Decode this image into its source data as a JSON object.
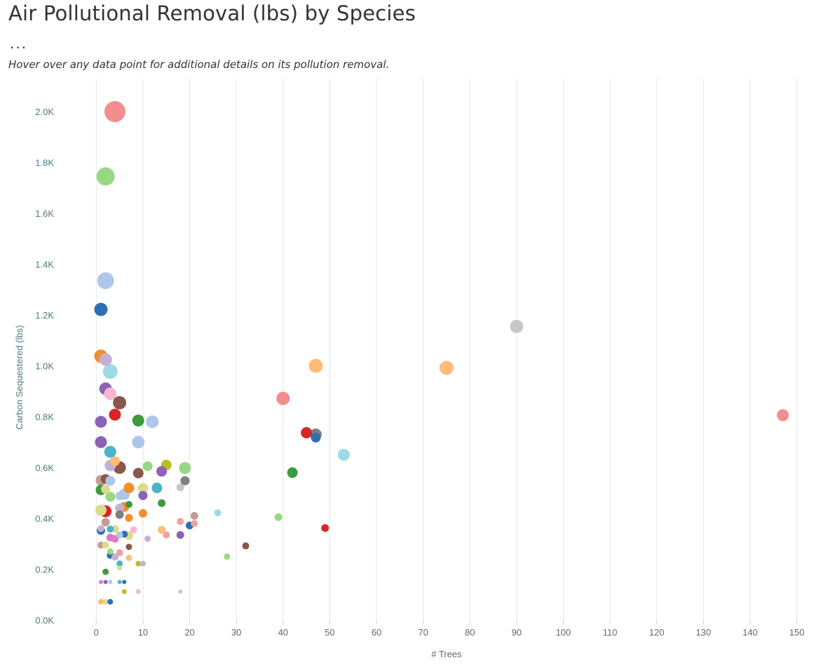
{
  "title": "Air Pollutional Removal (lbs) by Species",
  "ellipsis": "...",
  "subtitle": "Hover over any data point for additional details on its pollution removal.",
  "chart_data": {
    "type": "scatter",
    "xlabel": "# Trees",
    "ylabel": "Carbon Sequestered (lbs)",
    "xlim": [
      -8,
      152
    ],
    "ylim": [
      0,
      2130
    ],
    "xticks": [
      0,
      10,
      20,
      30,
      40,
      50,
      60,
      70,
      80,
      90,
      100,
      110,
      120,
      130,
      140,
      150
    ],
    "xtick_labels": [
      "0",
      "10",
      "20",
      "30",
      "40",
      "50",
      "60",
      "70",
      "80",
      "90",
      "100",
      "110",
      "120",
      "130",
      "140",
      "150"
    ],
    "yticks": [
      0,
      200,
      400,
      600,
      800,
      1000,
      1200,
      1400,
      1600,
      1800,
      2000
    ],
    "ytick_labels": [
      "0.0K",
      "0.2K",
      "0.4K",
      "0.6K",
      "0.8K",
      "1.0K",
      "1.2K",
      "1.4K",
      "1.6K",
      "1.8K",
      "2.0K"
    ],
    "grid": "vertical",
    "size_encoding": "marker area scales with pollution removal (lbs)",
    "points": [
      {
        "x": 4,
        "y": 2000,
        "size": 15,
        "color": "#f28e8c"
      },
      {
        "x": 2,
        "y": 1745,
        "size": 13,
        "color": "#98d883"
      },
      {
        "x": 2,
        "y": 1335,
        "size": 12,
        "color": "#aec7e8"
      },
      {
        "x": 1,
        "y": 1222,
        "size": 9.5,
        "color": "#2f6fb0"
      },
      {
        "x": 90,
        "y": 1155,
        "size": 9.5,
        "color": "#c7c7c7"
      },
      {
        "x": 1,
        "y": 1038,
        "size": 9.5,
        "color": "#f28e2b"
      },
      {
        "x": 2,
        "y": 1025,
        "size": 9,
        "color": "#c5b0d5"
      },
      {
        "x": 47,
        "y": 1000,
        "size": 10,
        "color": "#ffbb78"
      },
      {
        "x": 75,
        "y": 992,
        "size": 10,
        "color": "#ffbb78"
      },
      {
        "x": 3,
        "y": 978,
        "size": 10.5,
        "color": "#9edae5"
      },
      {
        "x": 2,
        "y": 910,
        "size": 9,
        "color": "#8c62b8"
      },
      {
        "x": 3,
        "y": 890,
        "size": 9,
        "color": "#f7b6d2"
      },
      {
        "x": 40,
        "y": 872,
        "size": 9.5,
        "color": "#f28e8c"
      },
      {
        "x": 5,
        "y": 855,
        "size": 9.5,
        "color": "#8c564b"
      },
      {
        "x": 4,
        "y": 808,
        "size": 8.5,
        "color": "#d62728"
      },
      {
        "x": 147,
        "y": 806,
        "size": 8.5,
        "color": "#f28e8c"
      },
      {
        "x": 9,
        "y": 785,
        "size": 8.5,
        "color": "#3c9b3c"
      },
      {
        "x": 12,
        "y": 780,
        "size": 9,
        "color": "#aec7e8"
      },
      {
        "x": 1,
        "y": 780,
        "size": 8.5,
        "color": "#8c62b8"
      },
      {
        "x": 45,
        "y": 737,
        "size": 8,
        "color": "#d62728"
      },
      {
        "x": 47,
        "y": 730,
        "size": 8.5,
        "color": "#7f7f7f"
      },
      {
        "x": 47,
        "y": 718,
        "size": 7,
        "color": "#2f6fb0"
      },
      {
        "x": 1,
        "y": 700,
        "size": 8.5,
        "color": "#8c62b8"
      },
      {
        "x": 9,
        "y": 700,
        "size": 9,
        "color": "#aec7e8"
      },
      {
        "x": 3,
        "y": 662,
        "size": 8.5,
        "color": "#4bb3cb"
      },
      {
        "x": 53,
        "y": 650,
        "size": 8.5,
        "color": "#9edae5"
      },
      {
        "x": 4,
        "y": 625,
        "size": 7,
        "color": "#ffbb78"
      },
      {
        "x": 15,
        "y": 610,
        "size": 7.5,
        "color": "#bcbd22"
      },
      {
        "x": 3,
        "y": 608,
        "size": 8,
        "color": "#c5b0d5"
      },
      {
        "x": 11,
        "y": 605,
        "size": 7,
        "color": "#98d883"
      },
      {
        "x": 5,
        "y": 600,
        "size": 9,
        "color": "#8c564b"
      },
      {
        "x": 19,
        "y": 598,
        "size": 8.5,
        "color": "#98d883"
      },
      {
        "x": 14,
        "y": 585,
        "size": 7.5,
        "color": "#8c62b8"
      },
      {
        "x": 42,
        "y": 580,
        "size": 7.5,
        "color": "#3c9b3c"
      },
      {
        "x": 9,
        "y": 578,
        "size": 7.5,
        "color": "#8c564b"
      },
      {
        "x": 2,
        "y": 555,
        "size": 7,
        "color": "#8c564b"
      },
      {
        "x": 1,
        "y": 550,
        "size": 7.5,
        "color": "#c49c94"
      },
      {
        "x": 3,
        "y": 548,
        "size": 7,
        "color": "#aec7e8"
      },
      {
        "x": 19,
        "y": 548,
        "size": 6.5,
        "color": "#7f7f7f"
      },
      {
        "x": 18,
        "y": 522,
        "size": 5.5,
        "color": "#c7c7c7"
      },
      {
        "x": 7,
        "y": 520,
        "size": 7.5,
        "color": "#f28e2b"
      },
      {
        "x": 13,
        "y": 520,
        "size": 7.5,
        "color": "#4bb3cb"
      },
      {
        "x": 10,
        "y": 518,
        "size": 7.5,
        "color": "#dbdb8d"
      },
      {
        "x": 2,
        "y": 515,
        "size": 6.5,
        "color": "#dbdb8d"
      },
      {
        "x": 1,
        "y": 512,
        "size": 7.5,
        "color": "#3c9b3c"
      },
      {
        "x": 6,
        "y": 495,
        "size": 8,
        "color": "#aec7e8"
      },
      {
        "x": 10,
        "y": 490,
        "size": 6.5,
        "color": "#8c62b8"
      },
      {
        "x": 5,
        "y": 488,
        "size": 6,
        "color": "#aec7e8"
      },
      {
        "x": 3,
        "y": 485,
        "size": 7,
        "color": "#98d883"
      },
      {
        "x": 14,
        "y": 460,
        "size": 5.5,
        "color": "#3c9b3c"
      },
      {
        "x": 7,
        "y": 455,
        "size": 5,
        "color": "#3c9b3c"
      },
      {
        "x": 6,
        "y": 445,
        "size": 7,
        "color": "#f28e2b"
      },
      {
        "x": 5,
        "y": 440,
        "size": 6.5,
        "color": "#c5b0d5"
      },
      {
        "x": 1,
        "y": 432,
        "size": 8,
        "color": "#dbdb8d"
      },
      {
        "x": 2,
        "y": 428,
        "size": 8.5,
        "color": "#d62728"
      },
      {
        "x": 26,
        "y": 422,
        "size": 5,
        "color": "#9edae5"
      },
      {
        "x": 10,
        "y": 420,
        "size": 6,
        "color": "#f28e2b"
      },
      {
        "x": 5,
        "y": 415,
        "size": 6,
        "color": "#7f7f7f"
      },
      {
        "x": 21,
        "y": 410,
        "size": 5.5,
        "color": "#c49c94"
      },
      {
        "x": 39,
        "y": 405,
        "size": 5.5,
        "color": "#98d883"
      },
      {
        "x": 7,
        "y": 402,
        "size": 5.5,
        "color": "#f28e2b"
      },
      {
        "x": 18,
        "y": 388,
        "size": 5,
        "color": "#f4a09b"
      },
      {
        "x": 2,
        "y": 385,
        "size": 6,
        "color": "#c49c94"
      },
      {
        "x": 21,
        "y": 380,
        "size": 5,
        "color": "#f4a09b"
      },
      {
        "x": 20,
        "y": 372,
        "size": 5.5,
        "color": "#2f6fb0"
      },
      {
        "x": 49,
        "y": 362,
        "size": 5.5,
        "color": "#d62728"
      },
      {
        "x": 1,
        "y": 360,
        "size": 5,
        "color": "#c5b0d5"
      },
      {
        "x": 3,
        "y": 358,
        "size": 5,
        "color": "#4bb3cb"
      },
      {
        "x": 4,
        "y": 358,
        "size": 5.5,
        "color": "#dbdb8d"
      },
      {
        "x": 8,
        "y": 355,
        "size": 5,
        "color": "#f7b6d2"
      },
      {
        "x": 14,
        "y": 355,
        "size": 5.5,
        "color": "#ffbb78"
      },
      {
        "x": 1,
        "y": 352,
        "size": 6,
        "color": "#2f6fb0"
      },
      {
        "x": 6,
        "y": 338,
        "size": 5,
        "color": "#2f6fb0"
      },
      {
        "x": 5,
        "y": 335,
        "size": 5,
        "color": "#aec7e8"
      },
      {
        "x": 15,
        "y": 335,
        "size": 5,
        "color": "#f4a09b"
      },
      {
        "x": 18,
        "y": 335,
        "size": 5.5,
        "color": "#8c62b8"
      },
      {
        "x": 7,
        "y": 332,
        "size": 6,
        "color": "#dbdb8d"
      },
      {
        "x": 3,
        "y": 325,
        "size": 5.5,
        "color": "#e377c2"
      },
      {
        "x": 4,
        "y": 320,
        "size": 5.5,
        "color": "#e377c2"
      },
      {
        "x": 11,
        "y": 320,
        "size": 4.5,
        "color": "#c5b0d5"
      },
      {
        "x": 1,
        "y": 295,
        "size": 5,
        "color": "#c49c94"
      },
      {
        "x": 2,
        "y": 295,
        "size": 5,
        "color": "#dbdb8d"
      },
      {
        "x": 32,
        "y": 292,
        "size": 5,
        "color": "#8c564b"
      },
      {
        "x": 7,
        "y": 288,
        "size": 4.5,
        "color": "#8c564b"
      },
      {
        "x": 3,
        "y": 270,
        "size": 4.5,
        "color": "#98d883"
      },
      {
        "x": 5,
        "y": 265,
        "size": 5,
        "color": "#f4a09b"
      },
      {
        "x": 3,
        "y": 255,
        "size": 5,
        "color": "#2f6fb0"
      },
      {
        "x": 4,
        "y": 248,
        "size": 5,
        "color": "#c5b0d5"
      },
      {
        "x": 7,
        "y": 245,
        "size": 4.5,
        "color": "#ffbb78"
      },
      {
        "x": 28,
        "y": 250,
        "size": 4.5,
        "color": "#98d883"
      },
      {
        "x": 5,
        "y": 222,
        "size": 4.5,
        "color": "#4bb3cb"
      },
      {
        "x": 9,
        "y": 222,
        "size": 4,
        "color": "#bcbd22"
      },
      {
        "x": 10,
        "y": 222,
        "size": 4,
        "color": "#c5b0d5"
      },
      {
        "x": 5,
        "y": 205,
        "size": 3.5,
        "color": "#dbdb8d"
      },
      {
        "x": 2,
        "y": 190,
        "size": 4.5,
        "color": "#3c9b3c"
      },
      {
        "x": 1,
        "y": 150,
        "size": 3,
        "color": "#e377c2"
      },
      {
        "x": 2,
        "y": 150,
        "size": 3,
        "color": "#8c62b8"
      },
      {
        "x": 3,
        "y": 150,
        "size": 3,
        "color": "#aec7e8"
      },
      {
        "x": 5,
        "y": 150,
        "size": 3,
        "color": "#4bb3cb"
      },
      {
        "x": 6,
        "y": 150,
        "size": 3,
        "color": "#2f6fb0"
      },
      {
        "x": 6,
        "y": 112,
        "size": 3.5,
        "color": "#bcbd22"
      },
      {
        "x": 9,
        "y": 112,
        "size": 3.5,
        "color": "#f7b6d2"
      },
      {
        "x": 18,
        "y": 112,
        "size": 3,
        "color": "#c7c7c7"
      },
      {
        "x": 1,
        "y": 72,
        "size": 4,
        "color": "#ffbb78"
      },
      {
        "x": 2,
        "y": 72,
        "size": 4,
        "color": "#dbdb8d"
      },
      {
        "x": 3,
        "y": 72,
        "size": 4,
        "color": "#2f6fb0"
      }
    ]
  },
  "colors": {
    "ytick": "#4a7a82",
    "ylabel": "#4a7a82",
    "xtick": "#666666",
    "xlabel": "#666666",
    "grid": "#e6e6e6"
  }
}
